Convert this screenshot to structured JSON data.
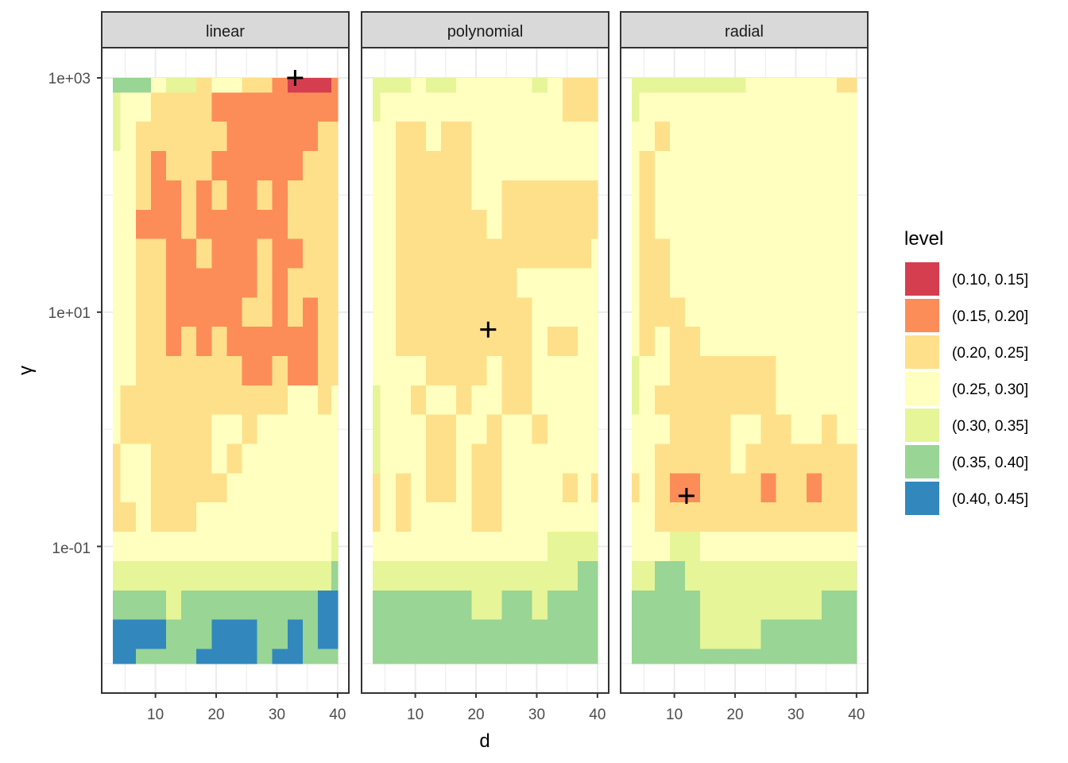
{
  "chart_data": {
    "type": "heatmap",
    "subtype": "filled-contour-faceted",
    "xlabel": "d",
    "ylabel": "γ",
    "x_ticks": [
      10,
      20,
      30,
      40
    ],
    "x_tick_labels": [
      "10",
      "20",
      "30",
      "40"
    ],
    "x_minor_ticks": [
      5,
      15,
      25,
      35
    ],
    "xlim": [
      1.15,
      41.85
    ],
    "y_scale": "log10",
    "y_ticks": [
      1000,
      10,
      0.1
    ],
    "y_tick_labels": [
      "1e+03",
      "1e+01",
      "1e-01"
    ],
    "y_minor_ticks": [
      100,
      1,
      0.01
    ],
    "ylim": [
      0.0056,
      1810
    ],
    "grid": true,
    "legend": {
      "title": "level",
      "position": "right",
      "entries": [
        {
          "label": "(0.10, 0.15]",
          "color": "#D53E4F"
        },
        {
          "label": "(0.15, 0.20]",
          "color": "#FC8D59"
        },
        {
          "label": "(0.20, 0.25]",
          "color": "#FEE08B"
        },
        {
          "label": "(0.25, 0.30]",
          "color": "#FFFFBF"
        },
        {
          "label": "(0.30, 0.35]",
          "color": "#E6F598"
        },
        {
          "label": "(0.35, 0.40]",
          "color": "#99D594"
        },
        {
          "label": "(0.40, 0.45]",
          "color": "#3288BD"
        }
      ]
    },
    "grid_d": [
      3,
      5.5,
      8,
      10.5,
      13,
      15.5,
      18,
      20.5,
      23,
      25.5,
      28,
      30.5,
      33,
      35.5,
      38,
      40
    ],
    "grid_log10_gamma": [
      3,
      2.75,
      2.5,
      2.25,
      2,
      1.75,
      1.5,
      1.25,
      1,
      0.75,
      0.5,
      0.25,
      0,
      -0.25,
      -0.5,
      -0.75,
      -1,
      -1.25,
      -1.5,
      -1.75,
      -2
    ],
    "level_index_note": "cells hold index into legend.entries (0 = lowest level band)",
    "panels": [
      {
        "name": "linear",
        "best": {
          "d": 33,
          "gamma": 1000
        },
        "levels": [
          [
            5,
            5,
            5,
            3,
            4,
            4,
            2,
            3,
            3,
            2,
            2,
            1,
            0,
            0,
            0,
            1
          ],
          [
            4,
            3,
            3,
            2,
            2,
            2,
            2,
            1,
            1,
            1,
            1,
            1,
            1,
            1,
            1,
            1
          ],
          [
            4,
            3,
            2,
            2,
            2,
            2,
            2,
            2,
            1,
            1,
            1,
            1,
            1,
            1,
            2,
            2
          ],
          [
            3,
            3,
            2,
            1,
            2,
            2,
            2,
            1,
            1,
            1,
            1,
            1,
            1,
            2,
            2,
            2
          ],
          [
            3,
            3,
            2,
            1,
            1,
            2,
            1,
            2,
            1,
            1,
            2,
            1,
            2,
            2,
            2,
            2
          ],
          [
            3,
            3,
            1,
            1,
            1,
            2,
            1,
            1,
            1,
            1,
            1,
            1,
            2,
            2,
            2,
            2
          ],
          [
            3,
            3,
            2,
            2,
            1,
            1,
            2,
            1,
            1,
            1,
            2,
            1,
            1,
            2,
            2,
            2
          ],
          [
            3,
            3,
            2,
            2,
            1,
            1,
            1,
            1,
            1,
            1,
            2,
            1,
            2,
            2,
            2,
            2
          ],
          [
            3,
            3,
            2,
            2,
            1,
            1,
            1,
            1,
            1,
            2,
            2,
            1,
            2,
            1,
            2,
            2
          ],
          [
            3,
            3,
            2,
            2,
            1,
            2,
            1,
            2,
            1,
            1,
            1,
            1,
            1,
            1,
            2,
            2
          ],
          [
            3,
            3,
            2,
            2,
            2,
            2,
            2,
            2,
            2,
            1,
            1,
            2,
            1,
            1,
            2,
            2
          ],
          [
            3,
            2,
            2,
            2,
            2,
            2,
            2,
            2,
            2,
            2,
            2,
            2,
            3,
            3,
            2,
            3
          ],
          [
            3,
            2,
            2,
            2,
            2,
            2,
            2,
            3,
            3,
            2,
            3,
            3,
            3,
            3,
            3,
            3
          ],
          [
            2,
            3,
            3,
            2,
            2,
            2,
            2,
            3,
            2,
            3,
            3,
            3,
            3,
            3,
            3,
            3
          ],
          [
            2,
            3,
            3,
            2,
            2,
            2,
            2,
            2,
            3,
            3,
            3,
            3,
            3,
            3,
            3,
            3
          ],
          [
            2,
            2,
            3,
            2,
            2,
            2,
            3,
            3,
            3,
            3,
            3,
            3,
            3,
            3,
            3,
            3
          ],
          [
            3,
            3,
            3,
            3,
            3,
            3,
            3,
            3,
            3,
            3,
            3,
            3,
            3,
            3,
            3,
            4
          ],
          [
            4,
            4,
            4,
            4,
            4,
            4,
            4,
            4,
            4,
            4,
            4,
            4,
            4,
            4,
            4,
            5
          ],
          [
            5,
            5,
            5,
            5,
            4,
            5,
            5,
            5,
            5,
            5,
            5,
            5,
            5,
            5,
            6,
            6
          ],
          [
            6,
            6,
            6,
            6,
            5,
            5,
            5,
            6,
            6,
            6,
            5,
            5,
            6,
            5,
            6,
            6
          ],
          [
            6,
            6,
            5,
            5,
            5,
            5,
            6,
            6,
            6,
            6,
            5,
            6,
            6,
            5,
            5,
            5
          ]
        ]
      },
      {
        "name": "polynomial",
        "best": {
          "d": 22,
          "gamma": 7.1
        },
        "levels": [
          [
            4,
            4,
            4,
            3,
            4,
            4,
            3,
            3,
            3,
            3,
            3,
            4,
            3,
            2,
            2,
            2
          ],
          [
            4,
            3,
            3,
            3,
            3,
            3,
            3,
            3,
            3,
            3,
            3,
            3,
            3,
            2,
            2,
            2
          ],
          [
            3,
            3,
            2,
            2,
            3,
            2,
            2,
            3,
            3,
            3,
            3,
            3,
            3,
            3,
            3,
            3
          ],
          [
            3,
            3,
            2,
            2,
            2,
            2,
            2,
            3,
            3,
            3,
            3,
            3,
            3,
            3,
            3,
            3
          ],
          [
            3,
            3,
            2,
            2,
            2,
            2,
            2,
            3,
            3,
            2,
            2,
            2,
            2,
            2,
            2,
            2
          ],
          [
            3,
            3,
            2,
            2,
            2,
            2,
            2,
            2,
            3,
            2,
            2,
            2,
            2,
            2,
            2,
            2
          ],
          [
            3,
            3,
            2,
            2,
            2,
            2,
            2,
            2,
            2,
            2,
            2,
            2,
            2,
            2,
            2,
            3
          ],
          [
            3,
            3,
            2,
            2,
            2,
            2,
            2,
            2,
            2,
            2,
            3,
            3,
            3,
            3,
            3,
            3
          ],
          [
            3,
            3,
            2,
            2,
            2,
            2,
            2,
            2,
            2,
            2,
            2,
            3,
            3,
            3,
            3,
            3
          ],
          [
            3,
            3,
            2,
            2,
            2,
            2,
            2,
            2,
            2,
            2,
            2,
            3,
            2,
            2,
            3,
            3
          ],
          [
            3,
            3,
            3,
            3,
            2,
            2,
            2,
            2,
            3,
            2,
            2,
            3,
            3,
            3,
            3,
            3
          ],
          [
            4,
            3,
            3,
            2,
            3,
            3,
            2,
            3,
            3,
            2,
            2,
            3,
            3,
            3,
            3,
            3
          ],
          [
            4,
            3,
            3,
            3,
            2,
            2,
            3,
            3,
            2,
            3,
            3,
            2,
            3,
            3,
            3,
            3
          ],
          [
            4,
            3,
            3,
            3,
            2,
            2,
            3,
            2,
            2,
            3,
            3,
            3,
            3,
            3,
            3,
            3
          ],
          [
            2,
            3,
            2,
            3,
            2,
            2,
            3,
            2,
            2,
            3,
            3,
            3,
            3,
            2,
            3,
            2
          ],
          [
            2,
            3,
            2,
            3,
            3,
            3,
            3,
            2,
            2,
            3,
            3,
            3,
            3,
            3,
            3,
            3
          ],
          [
            3,
            3,
            3,
            3,
            3,
            3,
            3,
            3,
            3,
            3,
            3,
            3,
            4,
            4,
            4,
            4
          ],
          [
            4,
            4,
            4,
            4,
            4,
            4,
            4,
            4,
            4,
            4,
            4,
            4,
            4,
            4,
            5,
            5
          ],
          [
            5,
            5,
            5,
            5,
            5,
            5,
            5,
            4,
            4,
            5,
            5,
            4,
            5,
            5,
            5,
            5
          ],
          [
            5,
            5,
            5,
            5,
            5,
            5,
            5,
            5,
            5,
            5,
            5,
            5,
            5,
            5,
            5,
            5
          ],
          [
            5,
            5,
            5,
            5,
            5,
            5,
            5,
            5,
            5,
            5,
            5,
            5,
            5,
            5,
            5,
            5
          ]
        ]
      },
      {
        "name": "radial",
        "best": {
          "d": 12,
          "gamma": 0.27
        },
        "levels": [
          [
            4,
            4,
            4,
            4,
            4,
            4,
            4,
            4,
            3,
            3,
            3,
            3,
            3,
            3,
            2,
            2
          ],
          [
            4,
            3,
            3,
            3,
            3,
            3,
            3,
            3,
            3,
            3,
            3,
            3,
            3,
            3,
            3,
            3
          ],
          [
            3,
            3,
            2,
            3,
            3,
            3,
            3,
            3,
            3,
            3,
            3,
            3,
            3,
            3,
            3,
            3
          ],
          [
            3,
            2,
            3,
            3,
            3,
            3,
            3,
            3,
            3,
            3,
            3,
            3,
            3,
            3,
            3,
            3
          ],
          [
            3,
            2,
            3,
            3,
            3,
            3,
            3,
            3,
            3,
            3,
            3,
            3,
            3,
            3,
            3,
            3
          ],
          [
            3,
            2,
            3,
            3,
            3,
            3,
            3,
            3,
            3,
            3,
            3,
            3,
            3,
            3,
            3,
            3
          ],
          [
            3,
            2,
            2,
            3,
            3,
            3,
            3,
            3,
            3,
            3,
            3,
            3,
            3,
            3,
            3,
            3
          ],
          [
            3,
            2,
            2,
            3,
            3,
            3,
            3,
            3,
            3,
            3,
            3,
            3,
            3,
            3,
            3,
            3
          ],
          [
            3,
            2,
            2,
            2,
            3,
            3,
            3,
            3,
            3,
            3,
            3,
            3,
            3,
            3,
            3,
            3
          ],
          [
            3,
            2,
            3,
            2,
            2,
            3,
            3,
            3,
            3,
            3,
            3,
            3,
            3,
            3,
            3,
            3
          ],
          [
            4,
            3,
            3,
            2,
            2,
            2,
            2,
            2,
            2,
            2,
            3,
            3,
            3,
            3,
            3,
            3
          ],
          [
            4,
            3,
            2,
            2,
            2,
            2,
            2,
            2,
            2,
            2,
            3,
            3,
            3,
            3,
            3,
            3
          ],
          [
            3,
            3,
            3,
            2,
            2,
            2,
            2,
            3,
            3,
            2,
            2,
            3,
            3,
            2,
            3,
            3
          ],
          [
            3,
            3,
            2,
            2,
            2,
            2,
            2,
            3,
            2,
            2,
            2,
            2,
            2,
            2,
            2,
            2
          ],
          [
            2,
            3,
            2,
            1,
            1,
            2,
            2,
            2,
            2,
            1,
            2,
            2,
            1,
            2,
            2,
            2
          ],
          [
            3,
            3,
            2,
            2,
            2,
            2,
            2,
            2,
            2,
            2,
            2,
            2,
            2,
            2,
            2,
            2
          ],
          [
            3,
            3,
            3,
            4,
            4,
            3,
            3,
            3,
            3,
            3,
            3,
            3,
            3,
            3,
            3,
            3
          ],
          [
            4,
            4,
            5,
            5,
            4,
            4,
            4,
            4,
            4,
            4,
            4,
            4,
            4,
            4,
            4,
            4
          ],
          [
            5,
            5,
            5,
            5,
            5,
            4,
            4,
            4,
            4,
            4,
            4,
            4,
            4,
            5,
            5,
            5
          ],
          [
            5,
            5,
            5,
            5,
            5,
            4,
            4,
            4,
            4,
            5,
            5,
            5,
            5,
            5,
            5,
            5
          ],
          [
            5,
            5,
            5,
            5,
            5,
            5,
            5,
            5,
            5,
            5,
            5,
            5,
            5,
            5,
            5,
            5
          ]
        ]
      }
    ]
  }
}
